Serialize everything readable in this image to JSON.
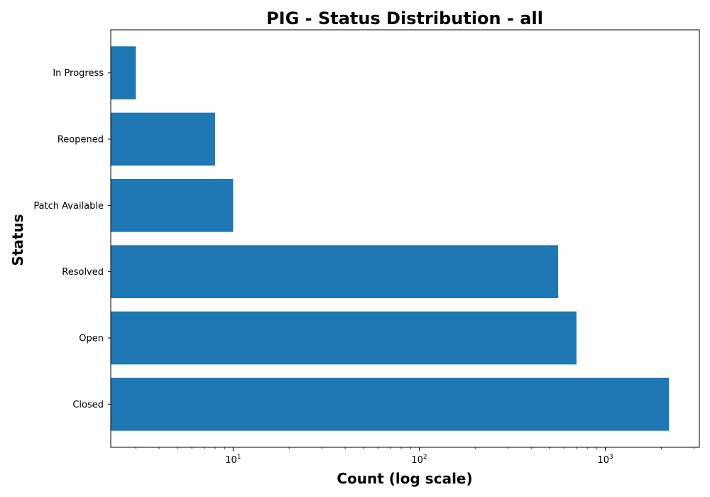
{
  "chart_data": {
    "type": "bar",
    "orientation": "horizontal",
    "title": "PIG - Status Distribution - all",
    "xlabel": "Count (log scale)",
    "ylabel": "Status",
    "x_scale": "log",
    "xlim": [
      2.2,
      3200
    ],
    "categories": [
      "Closed",
      "Open",
      "Resolved",
      "Patch Available",
      "Reopened",
      "In Progress"
    ],
    "values": [
      2200,
      700,
      557,
      10,
      8,
      3
    ],
    "x_ticks": [
      {
        "base": "10",
        "exp": "1",
        "value": 10
      },
      {
        "base": "10",
        "exp": "2",
        "value": 100
      },
      {
        "base": "10",
        "exp": "3",
        "value": 1000
      }
    ],
    "bar_color": "#1f77b4",
    "grid": false,
    "legend": "none"
  }
}
